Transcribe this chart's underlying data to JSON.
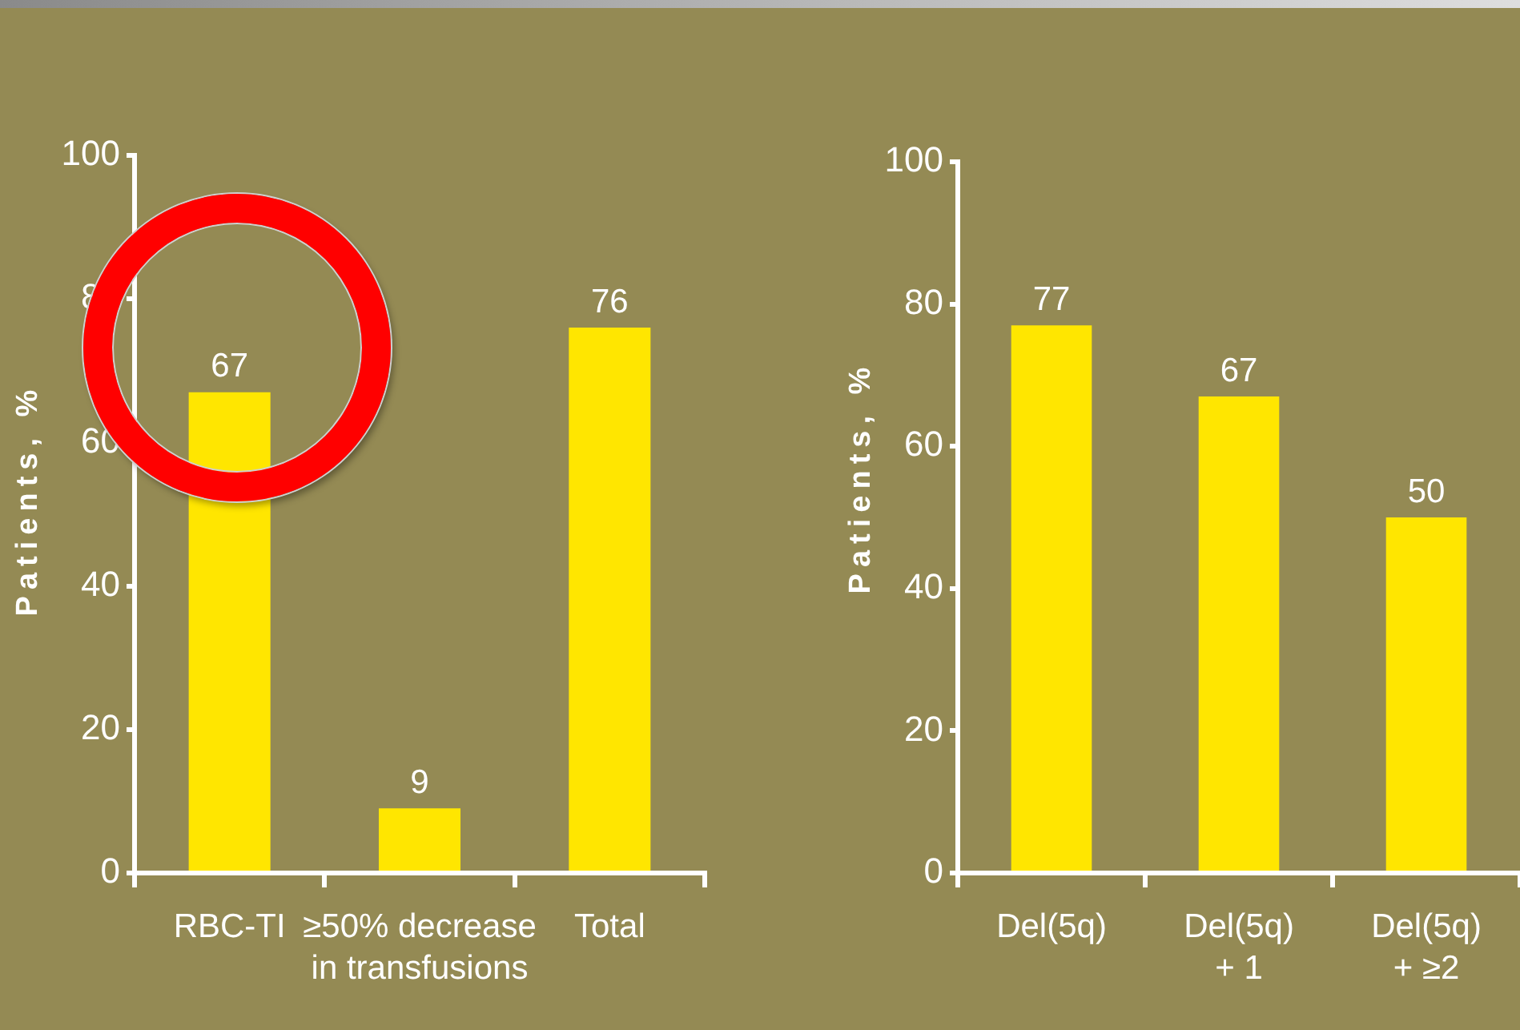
{
  "chart_data": [
    {
      "type": "bar",
      "categories": [
        "RBC-TI",
        "≥50% decrease\nin transfusions",
        "Total"
      ],
      "values": [
        67,
        9,
        76
      ],
      "color": "#ffe600",
      "ylabel": "Patients, %",
      "ylim": [
        0,
        100
      ],
      "yticks": [
        0,
        20,
        40,
        60,
        80,
        100
      ],
      "data_labels": true
    },
    {
      "type": "bar",
      "categories": [
        "Del(5q)",
        "Del(5q)\n+ 1",
        "Del(5q)\n+ ≥2"
      ],
      "values": [
        77,
        67,
        50
      ],
      "color": "#ffe600",
      "ylabel": "Patients, %",
      "ylim": [
        0,
        100
      ],
      "yticks": [
        0,
        20,
        40,
        60,
        80,
        100
      ],
      "data_labels": true
    }
  ]
}
